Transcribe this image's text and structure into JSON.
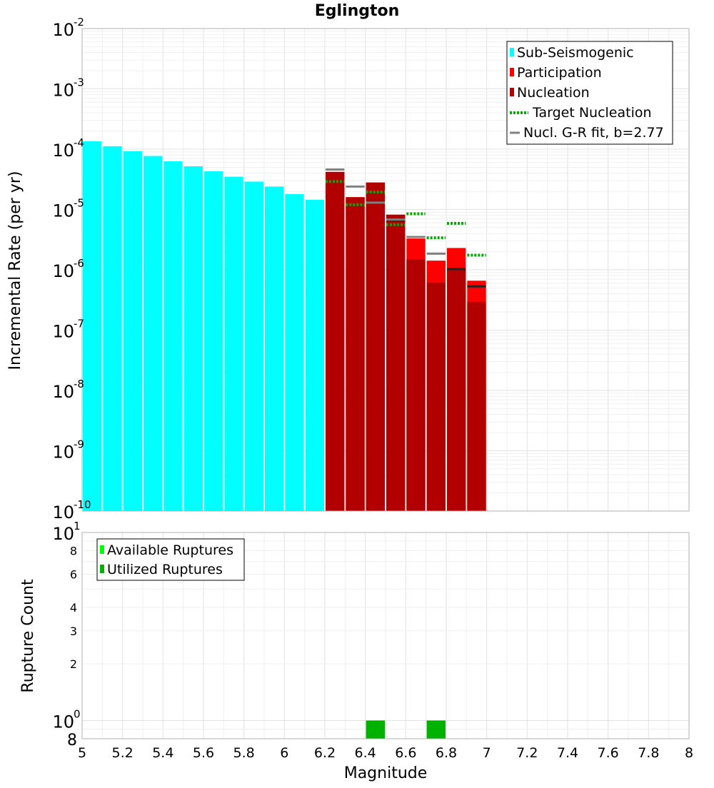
{
  "chart_data": [
    {
      "type": "bar",
      "title": "Eglington",
      "ylabel": "Incremental Rate (per yr)",
      "xlim": [
        5,
        8
      ],
      "ylim": [
        1e-10,
        0.01
      ],
      "yscale": "log",
      "grid": true,
      "legend_position": "top-right",
      "y_ticks": [
        {
          "value": 0.01,
          "base": "10",
          "exp": "-2"
        },
        {
          "value": 0.001,
          "base": "10",
          "exp": "-3"
        },
        {
          "value": 0.0001,
          "base": "10",
          "exp": "-4"
        },
        {
          "value": 1e-05,
          "base": "10",
          "exp": "-5"
        },
        {
          "value": 1e-06,
          "base": "10",
          "exp": "-6"
        },
        {
          "value": 1e-07,
          "base": "10",
          "exp": "-7"
        },
        {
          "value": 1e-08,
          "base": "10",
          "exp": "-8"
        },
        {
          "value": 1e-09,
          "base": "10",
          "exp": "-9"
        },
        {
          "value": 1e-10,
          "base": "10",
          "exp": "-10"
        }
      ],
      "sub_seismogenic": {
        "name": "Sub-Seismogenic",
        "color": "#00ffff",
        "x": [
          5.05,
          5.15,
          5.25,
          5.35,
          5.45,
          5.55,
          5.65,
          5.75,
          5.85,
          5.95,
          6.05,
          6.15
        ],
        "values": [
          0.000135,
          0.000112,
          9.3e-05,
          7.7e-05,
          6.3e-05,
          5.2e-05,
          4.3e-05,
          3.5e-05,
          2.9e-05,
          2.4e-05,
          1.8e-05,
          1.45e-05
        ]
      },
      "participation": {
        "name": "Participation",
        "color": "#ff0000",
        "x": [
          6.25,
          6.35,
          6.45,
          6.55,
          6.65,
          6.75,
          6.85,
          6.95
        ],
        "values": [
          4.2e-05,
          1.6e-05,
          2.8e-05,
          8.2e-06,
          3.3e-06,
          1.42e-06,
          2.3e-06,
          6.6e-07
        ]
      },
      "nucleation": {
        "name": "Nucleation",
        "color": "#b20000",
        "x": [
          6.25,
          6.35,
          6.45,
          6.55,
          6.65,
          6.75,
          6.85,
          6.95
        ],
        "values": [
          4.2e-05,
          1.6e-05,
          2.8e-05,
          8.2e-06,
          1.5e-06,
          6.1e-07,
          1.03e-06,
          2.95e-07
        ]
      },
      "nucleation_marks": {
        "x": [
          6.45,
          6.55,
          6.85,
          6.95
        ],
        "values": [
          1.3e-05,
          6.6e-06,
          1.03e-06,
          5.3e-07
        ],
        "color": "#222222"
      },
      "target_nucleation": {
        "name": "Target Nucleation",
        "color": "#00aa00",
        "x": [
          6.25,
          6.35,
          6.45,
          6.55,
          6.65,
          6.75,
          6.85,
          6.95
        ],
        "values": [
          2.9e-05,
          1.2e-05,
          1.95e-05,
          5.6e-06,
          8.5e-06,
          3.4e-06,
          5.9e-06,
          1.75e-06
        ]
      },
      "gr_fit": {
        "name": "Nucl. G-R fit, b=2.77",
        "color": "#808080",
        "x": [
          6.25,
          6.35,
          6.45,
          6.55,
          6.65,
          6.75
        ],
        "values": [
          4.6e-05,
          2.4e-05,
          1.3e-05,
          6.8e-06,
          3.5e-06,
          1.85e-06
        ]
      }
    },
    {
      "type": "bar",
      "xlabel": "Magnitude",
      "ylabel": "Rupture Count",
      "xlim": [
        5,
        8
      ],
      "ylim": [
        0.8,
        10
      ],
      "yscale": "log",
      "grid": true,
      "legend_position": "top-left",
      "x_ticks": [
        "5",
        "5.2",
        "5.4",
        "5.6",
        "5.8",
        "6",
        "6.2",
        "6.4",
        "6.6",
        "6.8",
        "7",
        "7.2",
        "7.4",
        "7.6",
        "7.8",
        "8"
      ],
      "y_major_ticks": [
        {
          "value": 10,
          "base": "10",
          "exp": "1"
        },
        {
          "value": 1,
          "base": "10",
          "exp": "0"
        }
      ],
      "y_minor_ticks": [
        {
          "value": 8,
          "label": "8"
        },
        {
          "value": 6,
          "label": "6"
        },
        {
          "value": 4,
          "label": "4"
        },
        {
          "value": 3,
          "label": "3"
        },
        {
          "value": 2,
          "label": "2"
        },
        {
          "value": 0.8,
          "label": "8"
        }
      ],
      "available": {
        "name": "Available Ruptures",
        "color": "#00ff00",
        "x": [
          6.45,
          6.75
        ],
        "values": [
          1,
          1
        ]
      },
      "utilized": {
        "name": "Utilized Ruptures",
        "color": "#00b200",
        "x": [
          6.45,
          6.75
        ],
        "values": [
          1,
          1
        ]
      }
    }
  ]
}
